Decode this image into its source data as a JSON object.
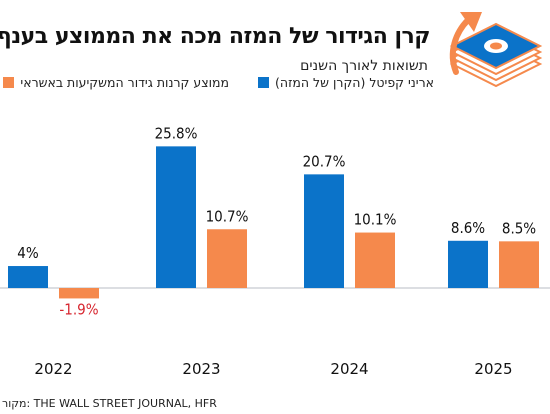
{
  "title": "קרן הגידור של המזה מכה את הממוצע בענף",
  "subtitle": "תשואות לאורך השנים",
  "legend": {
    "series_a": "אריני קפיטל (הקרן של המזה)",
    "series_b": "ממוצע קרנות גידור המשקיעות באשראי"
  },
  "source": "מקור: THE WALL STREET JOURNAL, HFR",
  "colors": {
    "series_a": "#0b73c9",
    "series_b": "#f5894c",
    "negative_label": "#d7262f",
    "baseline": "#b9bec4"
  },
  "icons": [
    "money-stack-arrow-up-icon"
  ],
  "chart_data": {
    "type": "bar",
    "categories": [
      "2022",
      "2023",
      "2024",
      "2025"
    ],
    "series": [
      {
        "name": "אריני קפיטל (הקרן של המזה)",
        "values": [
          4,
          25.8,
          20.7,
          8.6
        ],
        "labels": [
          "4%",
          "25.8%",
          "20.7%",
          "8.6%"
        ]
      },
      {
        "name": "ממוצע קרנות גידור המשקיעות באשראי",
        "values": [
          -1.9,
          10.7,
          10.1,
          8.5
        ],
        "labels": [
          "-1.9%",
          "10.7%",
          "10.1%",
          "8.5%"
        ]
      }
    ],
    "ylim": [
      -1.9,
      25.8
    ],
    "grid": false,
    "legend_position": "top"
  }
}
